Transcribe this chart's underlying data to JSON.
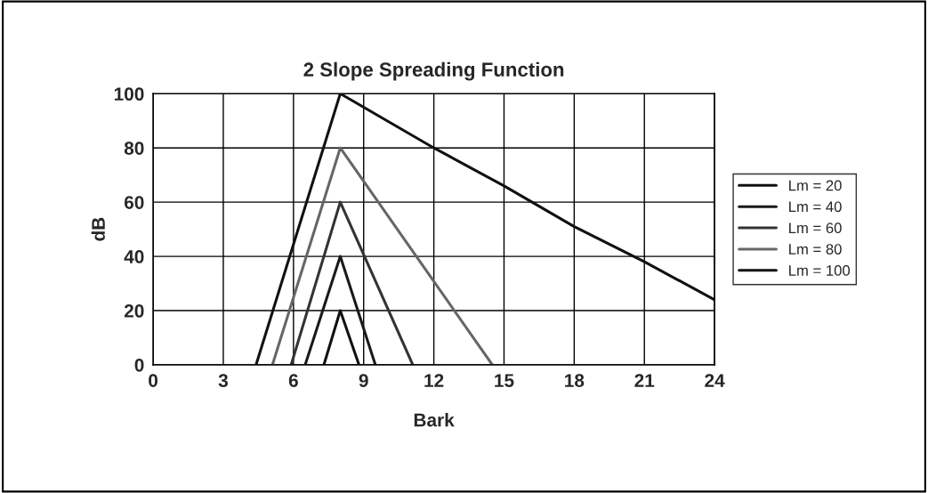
{
  "chart_data": {
    "type": "line",
    "title": "2 Slope Spreading Function",
    "xlabel": "Bark",
    "ylabel": "dB",
    "xlim": [
      0,
      24
    ],
    "xticks": [
      0,
      3,
      6,
      9,
      12,
      15,
      18,
      21,
      24
    ],
    "ylim": [
      0,
      100
    ],
    "yticks": [
      0,
      20,
      40,
      60,
      80,
      100
    ],
    "grid": true,
    "legend": "right",
    "marker": "none",
    "line_style": "solid",
    "series": [
      {
        "name": "Lm = 20",
        "color": "#111111",
        "x": [
          7.3,
          8,
          8.8
        ],
        "values": [
          0,
          20,
          0
        ]
      },
      {
        "name": "Lm = 40",
        "color": "#1a1a1a",
        "x": [
          6.5,
          8,
          9.5
        ],
        "values": [
          0,
          40,
          0
        ]
      },
      {
        "name": "Lm = 60",
        "color": "#333333",
        "x": [
          5.9,
          8,
          11.1
        ],
        "values": [
          0,
          60,
          0
        ]
      },
      {
        "name": "Lm = 80",
        "color": "#666666",
        "x": [
          5.1,
          8,
          14.5
        ],
        "values": [
          0,
          80,
          0
        ]
      },
      {
        "name": "Lm = 100",
        "color": "#111111",
        "x": [
          4.4,
          8,
          12,
          15,
          18,
          21,
          24
        ],
        "values": [
          0,
          100,
          80,
          66,
          51,
          38,
          24
        ]
      }
    ]
  }
}
